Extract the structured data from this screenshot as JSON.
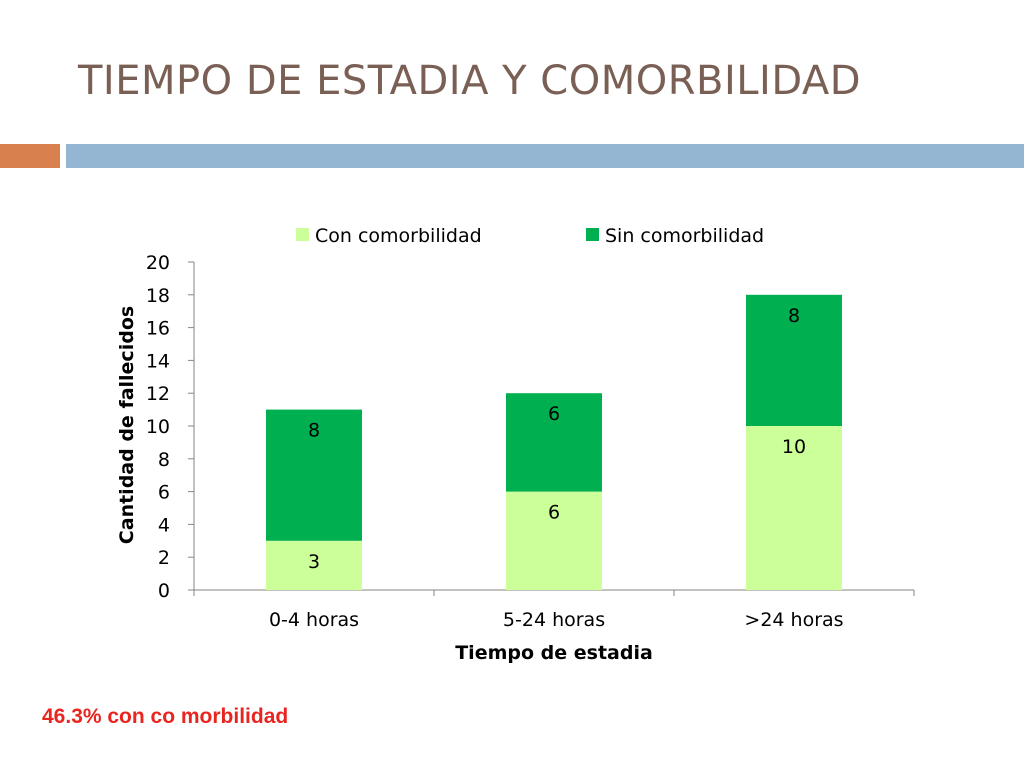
{
  "slide": {
    "title": "TIEMPO DE ESTADIA Y COMORBILIDAD",
    "footnote": "46.3% con co morbilidad",
    "colors": {
      "title": "#7a6054",
      "accent_orange": "#d9804f",
      "accent_blue": "#94b6d2",
      "footnote": "#e8261f"
    }
  },
  "chart_data": {
    "type": "bar",
    "stacked": true,
    "title": "",
    "xlabel": "Tiempo de estadia",
    "ylabel": "Cantidad de fallecidos",
    "categories": [
      "0-4 horas",
      "5-24 horas",
      ">24 horas"
    ],
    "series": [
      {
        "name": "Con comorbilidad",
        "values": [
          3,
          6,
          10
        ],
        "color": "#ccff99"
      },
      {
        "name": "Sin comorbilidad",
        "values": [
          8,
          6,
          8
        ],
        "color": "#00b050"
      }
    ],
    "ylim": [
      0,
      20
    ],
    "yticks": [
      0,
      2,
      4,
      6,
      8,
      10,
      12,
      14,
      16,
      18,
      20
    ],
    "grid": false,
    "legend_position": "top"
  }
}
